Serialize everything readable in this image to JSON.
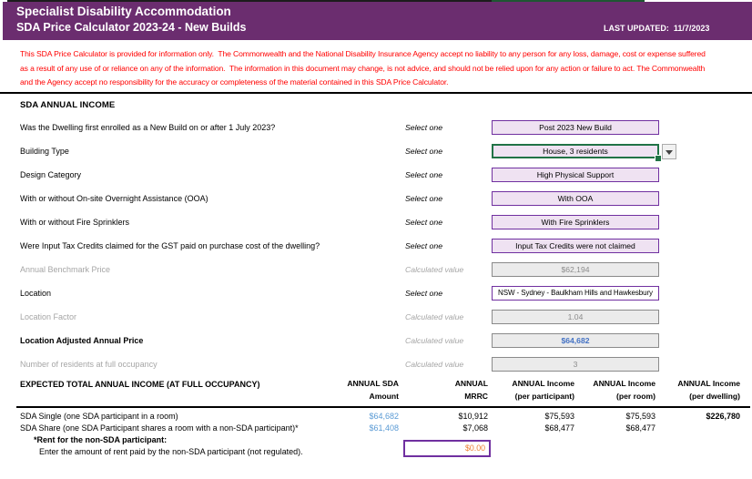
{
  "header": {
    "title": "Specialist Disability Accommodation",
    "subtitle": "SDA Price Calculator 2023-24 - New Builds",
    "last_updated": "LAST UPDATED:  11/7/2023"
  },
  "disclaimer": {
    "lines": [
      "This SDA Price Calculator is provided for information only.  The Commonwealth and the National Disability Insurance Agency accept no liability to any person for any loss, damage, cost or expense suffered",
      "as a result of any use of or reliance on any of the information.  The information in this document may change, is not advice, and should not be relied upon for any action or failure to act. The Commonwealth",
      "and the Agency accept no responsibility for the accuracy or completeness of the material contained in this SDA Price Calculator."
    ]
  },
  "sections": {
    "annual_income": "SDA ANNUAL INCOME"
  },
  "form": {
    "rows": [
      {
        "name": "new-build-select",
        "label": "Was the Dwelling first enrolled as a New Build on or after 1 July 2023?",
        "hint": "Select one",
        "value": "Post 2023 New Build",
        "kind": "select"
      },
      {
        "name": "building-type-select",
        "label": "Building Type",
        "hint": "Select one",
        "value": "House, 3 residents",
        "kind": "select-active"
      },
      {
        "name": "design-category-select",
        "label": "Design Category",
        "hint": "Select one",
        "value": "High Physical Support",
        "kind": "select"
      },
      {
        "name": "ooa-select",
        "label": "With or without On-site Overnight Assistance (OOA)",
        "hint": "Select one",
        "value": "With OOA",
        "kind": "select"
      },
      {
        "name": "fire-sprinklers-select",
        "label": "With or without Fire Sprinklers",
        "hint": "Select one",
        "value": "With Fire Sprinklers",
        "kind": "select"
      },
      {
        "name": "gst-input-tax-credits-select",
        "label": "Were Input Tax Credits claimed for the GST paid on purchase cost of the dwelling?",
        "hint": "Select one",
        "value": "Input Tax Credits were not claimed",
        "kind": "select"
      },
      {
        "name": "annual-benchmark-price-value",
        "label": "Annual Benchmark Price",
        "hint": "Calculated value",
        "value": "$62,194",
        "kind": "calc"
      },
      {
        "name": "location-select",
        "label": "Location",
        "hint": "Select one",
        "value": "NSW - Sydney - Baulkham Hills and Hawkesbury",
        "kind": "select-wide"
      },
      {
        "name": "location-factor-value",
        "label": "Location Factor",
        "hint": "Calculated value",
        "value": "1.04",
        "kind": "calc"
      },
      {
        "name": "location-adjusted-annual-price-value",
        "label": "Location Adjusted Annual Price",
        "hint": "Calculated value",
        "value": "$64,682",
        "kind": "calc-em",
        "emphasis": true
      },
      {
        "name": "residents-full-occupancy-value",
        "label": "Number of residents at full occupancy",
        "hint": "Calculated value",
        "value": "3",
        "kind": "calc"
      }
    ]
  },
  "table": {
    "title": "EXPECTED TOTAL ANNUAL INCOME (AT FULL OCCUPANCY)",
    "columns": [
      {
        "line1": "ANNUAL SDA",
        "line2": "Amount"
      },
      {
        "line1": "ANNUAL",
        "line2": "MRRC"
      },
      {
        "line1": "ANNUAL Income",
        "line2": "(per participant)"
      },
      {
        "line1": "ANNUAL Income",
        "line2": "(per room)"
      },
      {
        "line1": "ANNUAL Income",
        "line2": "(per dwelling)"
      }
    ],
    "rows": [
      {
        "label": "SDA Single (one SDA participant in a room)",
        "values": [
          "$64,682",
          "$10,912",
          "$75,593",
          "$75,593",
          "$226,780"
        ],
        "styles": [
          "blue",
          "",
          "",
          "",
          "bold"
        ]
      },
      {
        "label": "SDA Share (one SDA Participant shares a room with a non-SDA participant)*",
        "values": [
          "$61,408",
          "$7,068",
          "$68,477",
          "$68,477",
          ""
        ],
        "styles": [
          "blue",
          "",
          "",
          "",
          ""
        ]
      }
    ],
    "rent_note": "*Rent for the non-SDA participant:",
    "rent_prompt": "Enter the amount of rent paid by the non-SDA participant (not regulated).",
    "rent_value": "$0.00"
  },
  "colors": {
    "header_bg": "#6B2D6F",
    "accent_purple": "#7030A0",
    "selection_green": "#217346",
    "dropdown_fill": "#EFE2F2",
    "calc_fill": "#EBEBEB",
    "calc_text": "#8C8C8C",
    "blue_value": "#4472C4",
    "table_blue": "#5B9BD5",
    "orange_value": "#ED7D31",
    "disclaimer_red": "#FF0000"
  }
}
